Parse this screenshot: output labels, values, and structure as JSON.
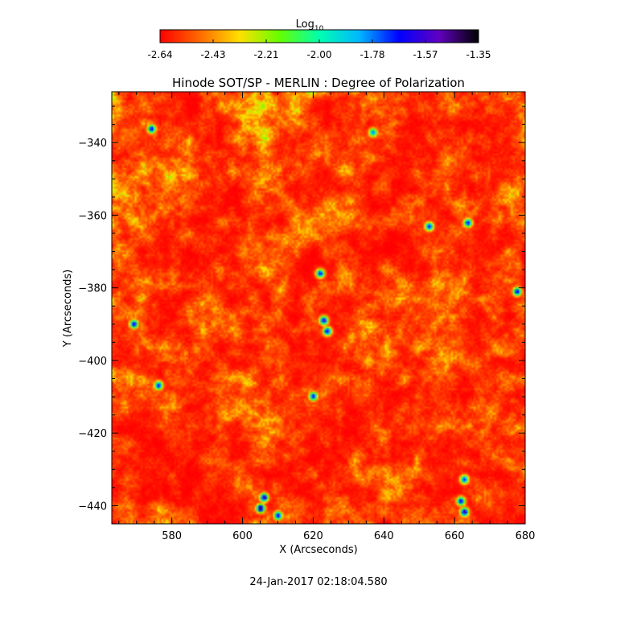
{
  "chart_data": {
    "type": "heatmap",
    "title": "Hinode SOT/SP - MERLIN : Degree of Polarization",
    "xlabel": "X (Arcseconds)",
    "ylabel": "Y (Arcseconds)",
    "xlim": [
      563,
      680
    ],
    "ylim": [
      -445,
      -326
    ],
    "x_ticks": [
      580,
      600,
      620,
      640,
      660,
      680
    ],
    "y_ticks": [
      -340,
      -360,
      -380,
      -400,
      -420,
      -440
    ],
    "colorbar": {
      "label": "Log",
      "label_subscript": "10",
      "range": [
        -2.64,
        -1.35
      ],
      "ticks": [
        "-2.64",
        "-2.43",
        "-2.21",
        "-2.00",
        "-1.78",
        "-1.57",
        "-1.35"
      ],
      "colors": [
        "#ff0000",
        "#ff6a00",
        "#ffe000",
        "#64ff00",
        "#00ffb0",
        "#00b8ff",
        "#0000ff",
        "#6000c0",
        "#000000"
      ]
    },
    "timestamp": "24-Jan-2017 02:18:04.580",
    "hotspots": [
      {
        "x": 574,
        "y": -336,
        "v": -1.6
      },
      {
        "x": 569,
        "y": -390,
        "v": -1.55
      },
      {
        "x": 576,
        "y": -407,
        "v": -1.6
      },
      {
        "x": 605,
        "y": -441,
        "v": -1.38
      },
      {
        "x": 606,
        "y": -438,
        "v": -1.45
      },
      {
        "x": 610,
        "y": -443,
        "v": -1.55
      },
      {
        "x": 622,
        "y": -376,
        "v": -1.6
      },
      {
        "x": 623,
        "y": -389,
        "v": -1.5
      },
      {
        "x": 624,
        "y": -392,
        "v": -1.55
      },
      {
        "x": 620,
        "y": -410,
        "v": -1.6
      },
      {
        "x": 653,
        "y": -363,
        "v": -1.6
      },
      {
        "x": 664,
        "y": -362,
        "v": -1.6
      },
      {
        "x": 678,
        "y": -381,
        "v": -1.6
      },
      {
        "x": 663,
        "y": -442,
        "v": -1.45
      },
      {
        "x": 662,
        "y": -439,
        "v": -1.6
      },
      {
        "x": 663,
        "y": -433,
        "v": -1.65
      },
      {
        "x": 637,
        "y": -337,
        "v": -1.75
      }
    ]
  }
}
